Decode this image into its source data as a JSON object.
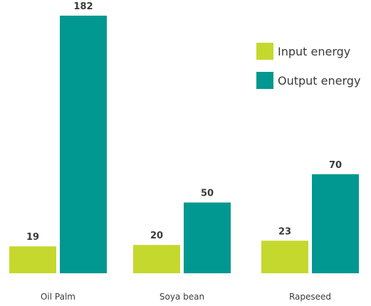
{
  "chart_data": {
    "type": "bar",
    "categories": [
      "Oil Palm",
      "Soya bean",
      "Rapeseed"
    ],
    "series": [
      {
        "name": "Input energy",
        "values": [
          19,
          20,
          23
        ],
        "color": "#c5d82e"
      },
      {
        "name": "Output energy",
        "values": [
          182,
          50,
          70
        ],
        "color": "#009890"
      }
    ],
    "ylim": [
      0,
      182
    ],
    "grid": false,
    "legend": "top-right",
    "data_labels": true
  }
}
